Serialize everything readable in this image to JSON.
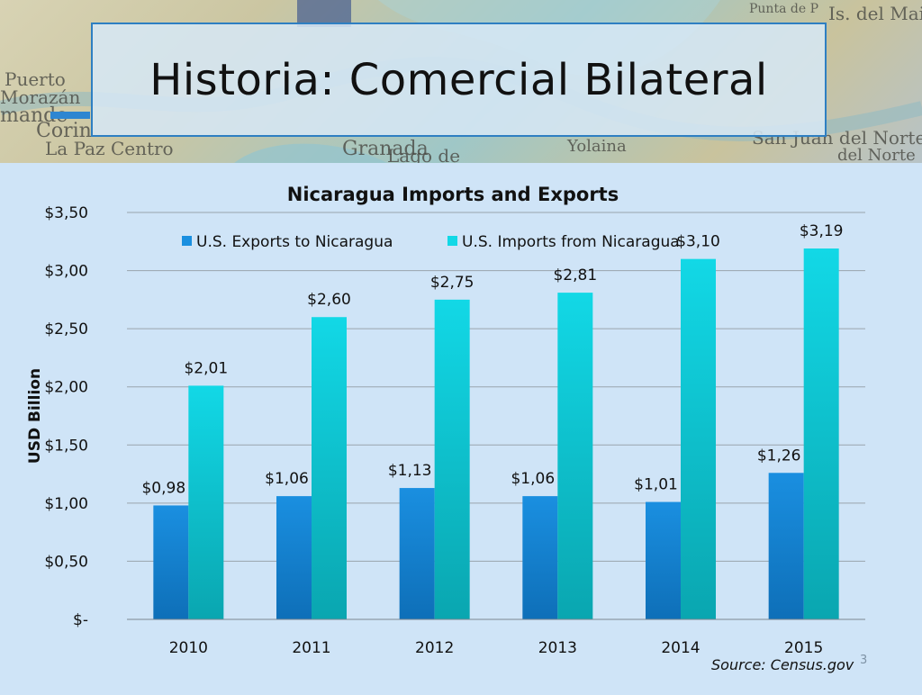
{
  "slide": {
    "title": "Historia: Comercial Bilateral",
    "number": "3",
    "source": "Source: Census.gov"
  },
  "banner": {
    "map_labels": [
      "Punta de P",
      "Is. del Maiz",
      "Puerto",
      "Morazán",
      "mande",
      "Corin",
      "La Paz Centro",
      "Granada",
      "Lago de",
      "Yolaina",
      "San Juan del Norte",
      "del Norte"
    ]
  },
  "colors": {
    "exports": "#1a8fe0",
    "imports": "#12d8e6",
    "background": "#cfe4f7",
    "accent": "#2e7fc2"
  },
  "chart_data": {
    "type": "bar",
    "title": "Nicaragua Imports and Exports",
    "xlabel": "",
    "ylabel": "USD Billion",
    "categories": [
      "2010",
      "2011",
      "2012",
      "2013",
      "2014",
      "2015"
    ],
    "ylim": [
      0,
      3.5
    ],
    "yticks": [
      0,
      0.5,
      1.0,
      1.5,
      2.0,
      2.5,
      3.0,
      3.5
    ],
    "ytick_labels": [
      "$-",
      "$0,50",
      "$1,00",
      "$1,50",
      "$2,00",
      "$2,50",
      "$3,00",
      "$3,50"
    ],
    "grid": true,
    "legend": "top-center",
    "series": [
      {
        "name": "U.S. Exports to Nicaragua",
        "values": [
          0.98,
          1.06,
          1.13,
          1.06,
          1.01,
          1.26
        ],
        "labels": [
          "$0,98",
          "$1,06",
          "$1,13",
          "$1,06",
          "$1,01",
          "$1,26"
        ]
      },
      {
        "name": "U.S. Imports from Nicaragua",
        "values": [
          2.01,
          2.6,
          2.75,
          2.81,
          3.1,
          3.19
        ],
        "labels": [
          "$2,01",
          "$2,60",
          "$2,75",
          "$2,81",
          "$3,10",
          "$3,19"
        ]
      }
    ]
  }
}
